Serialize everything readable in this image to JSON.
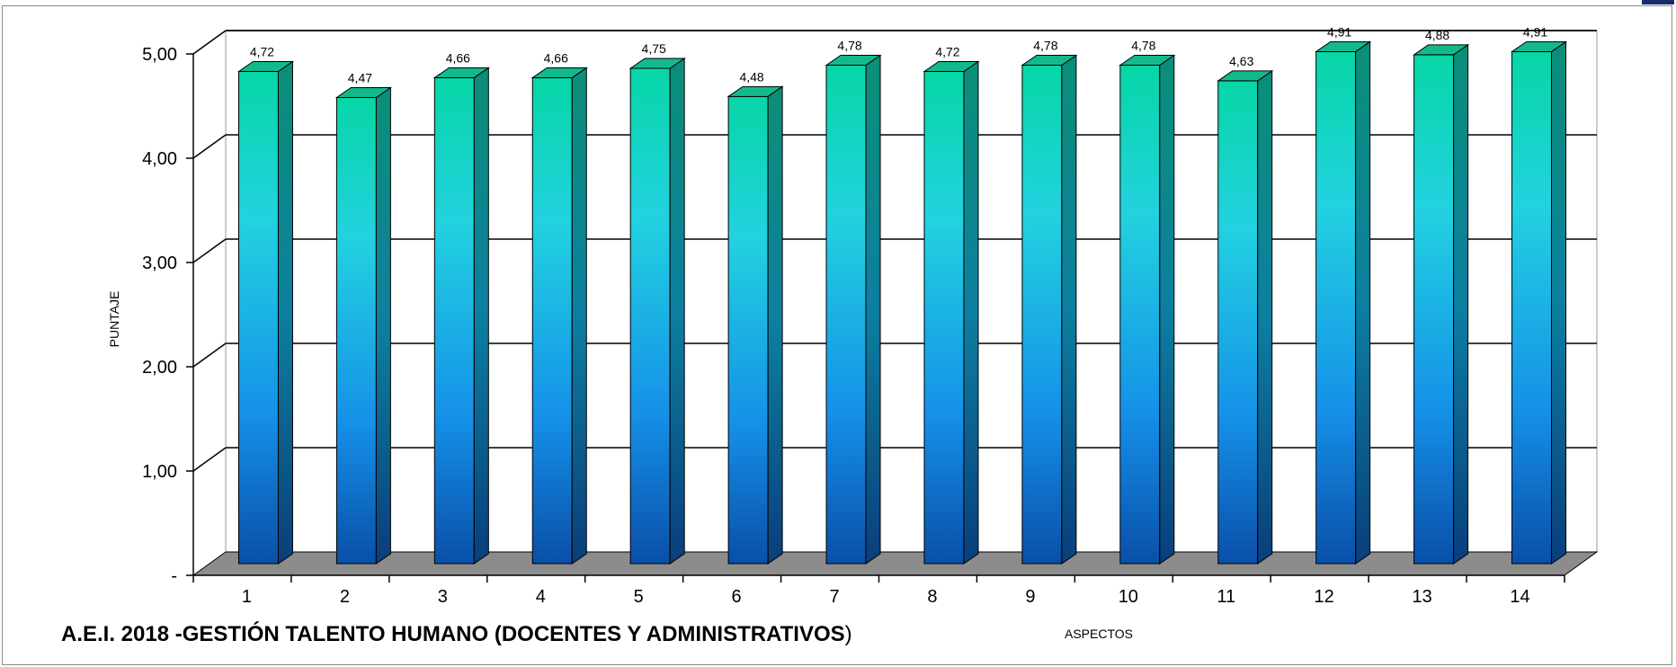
{
  "chart_data": {
    "type": "bar",
    "title": "",
    "xlabel": "ASPECTOS",
    "ylabel": "PUNTAJE",
    "categories": [
      "1",
      "2",
      "3",
      "4",
      "5",
      "6",
      "7",
      "8",
      "9",
      "10",
      "11",
      "12",
      "13",
      "14"
    ],
    "values": [
      4.72,
      4.47,
      4.66,
      4.66,
      4.75,
      4.48,
      4.78,
      4.72,
      4.78,
      4.78,
      4.63,
      4.91,
      4.88,
      4.91
    ],
    "value_labels": [
      "4,72",
      "4,47",
      "4,66",
      "4,66",
      "4,75",
      "4,48",
      "4,78",
      "4,72",
      "4,78",
      "4,78",
      "4,63",
      "4,91",
      "4,88",
      "4,91"
    ],
    "ylim": [
      0,
      5
    ],
    "yticks": [
      0,
      1,
      2,
      3,
      4,
      5
    ],
    "ytick_labels": [
      "-",
      "1,00",
      "2,00",
      "3,00",
      "4,00",
      "5,00"
    ],
    "grid": true,
    "legend": "none",
    "style": "3d-bar",
    "colors": {
      "bar_top": "#07d6a6",
      "bar_mid": "#22d2e0",
      "bar_bottom": "#0a4fa8",
      "bar_side": "#0b6a86",
      "bar_cap": "#13b98c",
      "floor": "#8c8c8c",
      "gridline": "#000000"
    }
  },
  "footer": {
    "title": "A.E.I. 2018 -GESTIÓN TALENTO HUMANO (DOCENTES Y ADMINISTRATIVOS",
    "title_suffix": ")"
  }
}
